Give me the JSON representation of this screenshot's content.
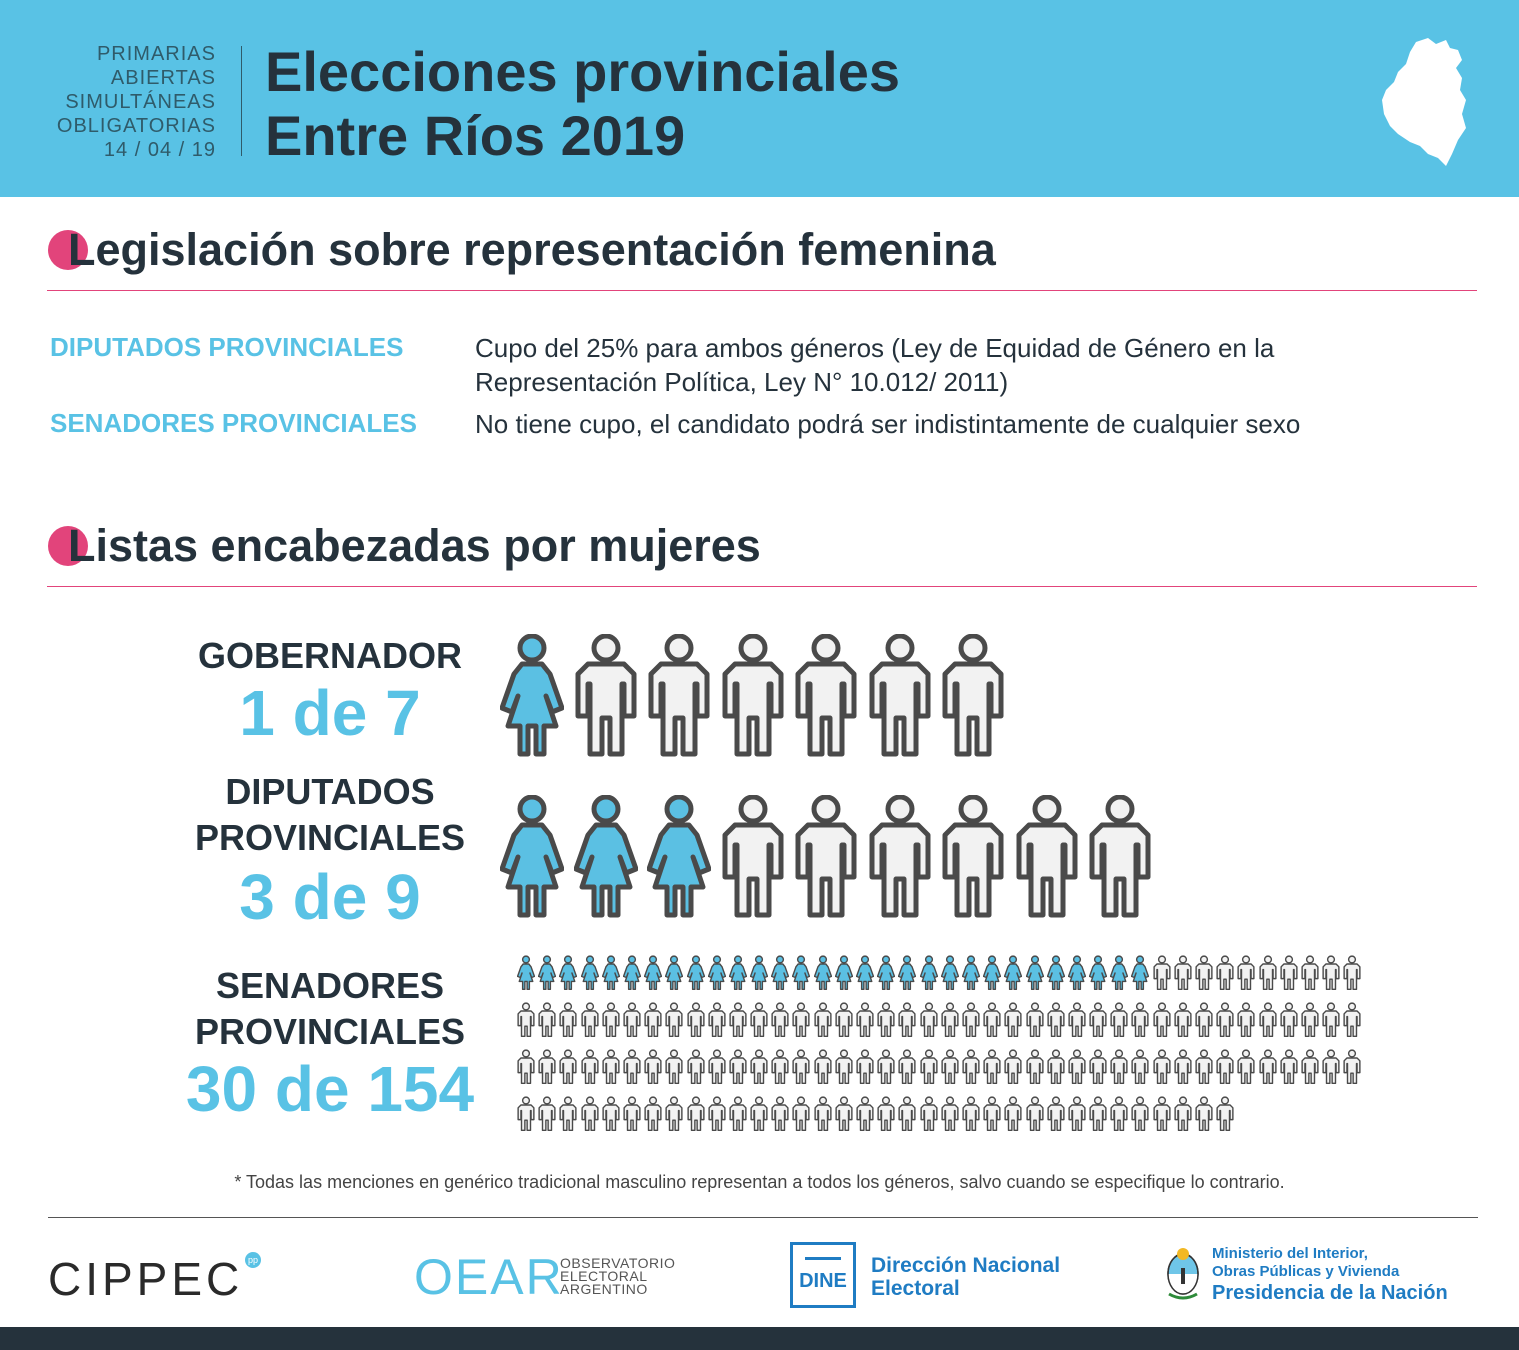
{
  "header": {
    "paso_lines": [
      "PRIMARIAS",
      "ABIERTAS",
      "SIMULTÁNEAS",
      "OBLIGATORIAS",
      "14 / 04 / 19"
    ],
    "title_lines": [
      "Elecciones provinciales",
      "Entre Ríos 2019"
    ],
    "map_icon": "entre-rios-map-icon"
  },
  "legislation": {
    "title": "Legislación sobre representación femenina",
    "rows": [
      {
        "label": "DIPUTADOS PROVINCIALES",
        "text_lines": [
          "Cupo del 25% para ambos géneros (Ley de Equidad de Género en la",
          "Representación Política, Ley N° 10.012/ 2011)"
        ]
      },
      {
        "label": "SENADORES PROVINCIALES",
        "text_lines": [
          "No tiene cupo, el  candidato  podrá  ser indistintamente de cualquier sexo"
        ]
      }
    ]
  },
  "lists": {
    "title": "Listas encabezadas por mujeres",
    "groups": [
      {
        "label_lines": [
          "GOBERNADOR"
        ],
        "count_text": "1 de 7",
        "women": 1,
        "total": 7
      },
      {
        "label_lines": [
          "DIPUTADOS",
          "PROVINCIALES"
        ],
        "count_text": "3 de 9",
        "women": 3,
        "total": 9
      },
      {
        "label_lines": [
          "SENADORES",
          "PROVINCIALES"
        ],
        "count_text": "30 de 154",
        "women": 30,
        "total": 154
      }
    ]
  },
  "footnote": "* Todas las menciones en genérico tradicional masculino representan a todos los géneros, salvo cuando se especifique lo contrario.",
  "footer": {
    "cippec": "CIPPEC",
    "cippec_badge": "pp",
    "oear": "OEAR",
    "oear_sub": [
      "OBSERVATORIO",
      "ELECTORAL",
      "ARGENTINO"
    ],
    "dine_box": "DINE",
    "dine_name": [
      "Dirección Nacional",
      "Electoral"
    ],
    "ministry": [
      "Ministerio del Interior,",
      "Obras Públicas y Vivienda",
      "Presidencia de la Nación"
    ]
  },
  "colors": {
    "header_bg": "#59c2e5",
    "accent_pink": "#e2447b",
    "woman_fill": "#5bc0e3",
    "man_fill": "#f2f2f2",
    "outline": "#4a4a4a"
  }
}
